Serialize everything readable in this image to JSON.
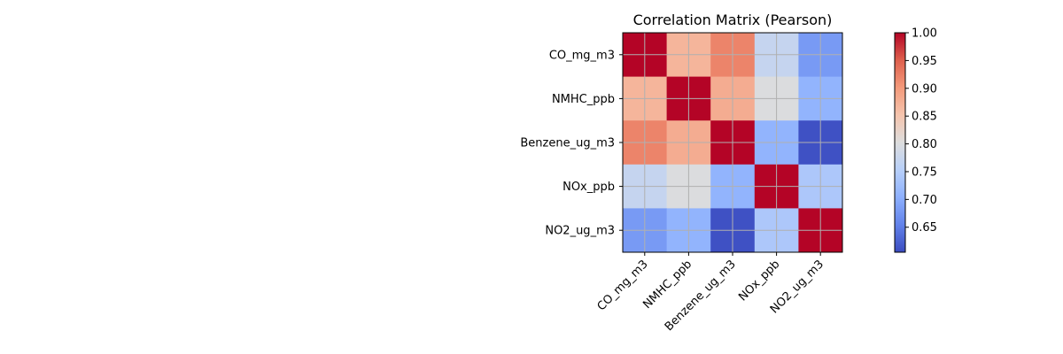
{
  "chart_data": {
    "type": "heatmap",
    "title": "Correlation Matrix (Pearson)",
    "xlabel": "",
    "ylabel": "",
    "labels": [
      "CO_mg_m3",
      "NMHC_ppb",
      "Benzene_ug_m3",
      "NOx_ppb",
      "NO2_ug_m3"
    ],
    "values": [
      [
        1.0,
        0.87,
        0.92,
        0.77,
        0.68
      ],
      [
        0.87,
        1.0,
        0.88,
        0.8,
        0.71
      ],
      [
        0.92,
        0.88,
        1.0,
        0.71,
        0.61
      ],
      [
        0.77,
        0.8,
        0.71,
        1.0,
        0.74
      ],
      [
        0.68,
        0.71,
        0.61,
        0.74,
        1.0
      ]
    ],
    "colormap": "coolwarm",
    "vmin": 0.605,
    "vmax": 1.0,
    "grid": true,
    "colorbar": {
      "ticks": [
        0.65,
        0.7,
        0.75,
        0.8,
        0.85,
        0.9,
        0.95,
        1.0
      ],
      "tick_labels": [
        "0.65",
        "0.70",
        "0.75",
        "0.80",
        "0.85",
        "0.90",
        "0.95",
        "1.00"
      ]
    }
  }
}
